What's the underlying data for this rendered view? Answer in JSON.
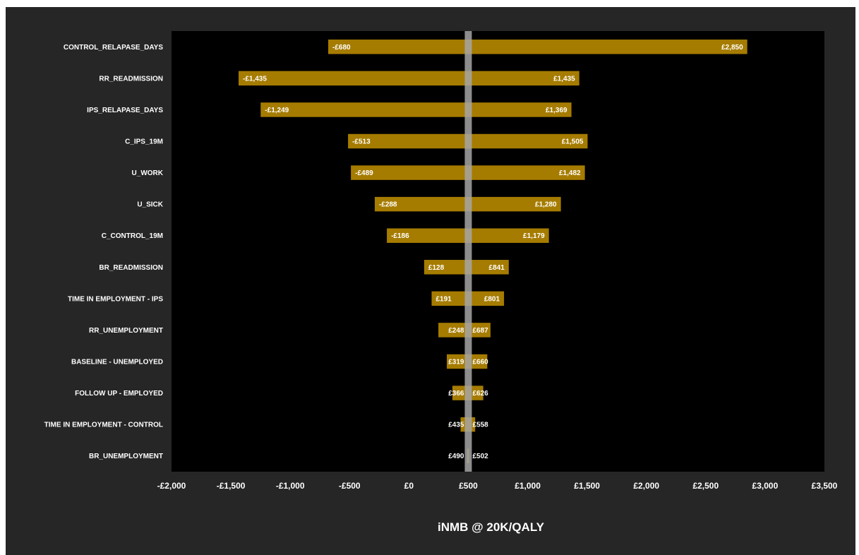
{
  "chart_data": {
    "type": "bar",
    "orientation": "horizontal-tornado",
    "xlabel": "iNMB @ 20K/QALY",
    "xlim": [
      -2000,
      3500
    ],
    "xticks": [
      -2000,
      -1500,
      -1000,
      -500,
      0,
      500,
      1000,
      1500,
      2000,
      2500,
      3000,
      3500
    ],
    "xtick_labels": [
      "-£2,000",
      "-£1,500",
      "-£1,000",
      "-£500",
      "£0",
      "£500",
      "£1,000",
      "£1,500",
      "£2,000",
      "£2,500",
      "£3,000",
      "£3,500"
    ],
    "baseline": 500,
    "categories": [
      "CONTROL_RELAPASE_DAYS",
      "RR_READMISSION",
      "IPS_RELAPASE_DAYS",
      "C_IPS_19M",
      "U_WORK",
      "U_SICK",
      "C_CONTROL_19M",
      "BR_READMISSION",
      "TIME IN EMPLOYMENT - IPS",
      "RR_UNEMPLOYMENT",
      "BASELINE - UNEMPLOYED",
      "FOLLOW UP - EMPLOYED",
      "TIME IN EMPLOYMENT - CONTROL",
      "BR_UNEMPLOYMENT"
    ],
    "low": [
      -680,
      -1435,
      -1249,
      -513,
      -489,
      -288,
      -186,
      128,
      191,
      248,
      319,
      366,
      435,
      490
    ],
    "high": [
      2850,
      1435,
      1369,
      1505,
      1482,
      1280,
      1179,
      841,
      801,
      687,
      660,
      626,
      558,
      502
    ],
    "low_labels": [
      "-£680",
      "-£1,435",
      "-£1,249",
      "-£513",
      "-£489",
      "-£288",
      "-£186",
      "£128",
      "£191",
      "£248",
      "£319",
      "£366",
      "£435",
      "£490"
    ],
    "high_labels": [
      "£2,850",
      "£1,435",
      "£1,369",
      "£1,505",
      "£1,482",
      "£1,280",
      "£1,179",
      "£841",
      "£801",
      "£687",
      "£660",
      "£626",
      "£558",
      "£502"
    ],
    "colors": {
      "frame": "#262626",
      "plot": "#000000",
      "bar": "#A67C00",
      "baseline": "#A6A6A6",
      "text": "#FFFFFF"
    },
    "grid": false,
    "legend": "none"
  }
}
